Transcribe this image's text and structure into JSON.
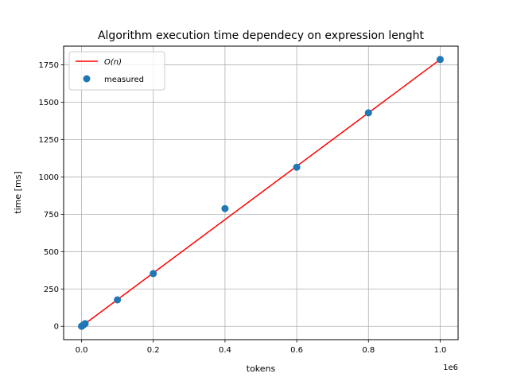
{
  "chart_data": {
    "type": "scatter",
    "title": "Algorithm execution time dependecy on expression lenght",
    "xlabel": "tokens",
    "ylabel": "time [ms]",
    "x_offset_label": "1e6",
    "xlim": [
      -50000,
      1050000
    ],
    "ylim": [
      -89.3,
      1875.5
    ],
    "x_ticks": [
      0,
      200000,
      400000,
      600000,
      800000,
      1000000
    ],
    "x_tick_labels": [
      "0.0",
      "0.2",
      "0.4",
      "0.6",
      "0.8",
      "1.0"
    ],
    "y_ticks": [
      0,
      250,
      500,
      750,
      1000,
      1250,
      1500,
      1750
    ],
    "y_tick_labels": [
      "0",
      "250",
      "500",
      "750",
      "1000",
      "1250",
      "1500",
      "1750"
    ],
    "grid": true,
    "legend_position": "top-left",
    "series": [
      {
        "name": "O(n)",
        "kind": "line",
        "color": "#ff0000",
        "x": [
          0,
          1000000
        ],
        "y": [
          0,
          1786
        ]
      },
      {
        "name": "measured",
        "kind": "scatter",
        "color": "#1f77b4",
        "x": [
          100,
          1000,
          5000,
          10000,
          100000,
          200000,
          400000,
          600000,
          800000,
          1000000
        ],
        "y": [
          0.2,
          2,
          9,
          18,
          177,
          353,
          788,
          1065,
          1429,
          1786
        ]
      }
    ]
  }
}
